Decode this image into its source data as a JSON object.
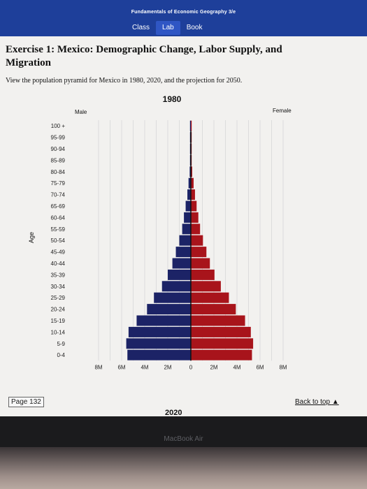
{
  "header": {
    "book_title": "Fundamentals of Economic Geography 3/e",
    "tabs": [
      {
        "label": "Class"
      },
      {
        "label": "Lab"
      },
      {
        "label": "Book"
      }
    ]
  },
  "exercise": {
    "title": "Exercise 1: Mexico: Demographic Change, Labor Supply, and Migration",
    "intro": "View the population pyramid for Mexico in 1980, 2020, and the projection for 2050."
  },
  "footer": {
    "page_label": "Page 132",
    "back_to_top": "Back to top",
    "next_chart_title": "2020"
  },
  "device": {
    "bezel_label": "MacBook Air"
  },
  "colors": {
    "male": "#1c2366",
    "female": "#a8141b",
    "header": "#1e3f9a"
  },
  "chart_data": {
    "type": "bar",
    "title": "1980",
    "ylabel": "Age",
    "orientation": "horizontal-population-pyramid",
    "categories": [
      "100 +",
      "95-99",
      "90-94",
      "85-89",
      "80-84",
      "75-79",
      "70-74",
      "65-69",
      "60-64",
      "55-59",
      "50-54",
      "45-49",
      "40-44",
      "35-39",
      "30-34",
      "25-29",
      "20-24",
      "15-19",
      "10-14",
      "5-9",
      "0-4"
    ],
    "series": [
      {
        "name": "Male",
        "values": [
          0.01,
          0.01,
          0.02,
          0.05,
          0.1,
          0.2,
          0.3,
          0.45,
          0.6,
          0.75,
          1.0,
          1.3,
          1.6,
          2.0,
          2.5,
          3.2,
          3.8,
          4.7,
          5.4,
          5.6,
          5.5
        ]
      },
      {
        "name": "Female",
        "values": [
          0.01,
          0.01,
          0.03,
          0.06,
          0.12,
          0.24,
          0.36,
          0.5,
          0.65,
          0.8,
          1.05,
          1.35,
          1.65,
          2.05,
          2.6,
          3.3,
          3.9,
          4.7,
          5.2,
          5.4,
          5.3
        ]
      }
    ],
    "x_ticks": [
      "8M",
      "6M",
      "4M",
      "2M",
      "0",
      "2M",
      "4M",
      "6M",
      "8M"
    ],
    "xlim": [
      -8,
      8
    ],
    "grid": true
  }
}
